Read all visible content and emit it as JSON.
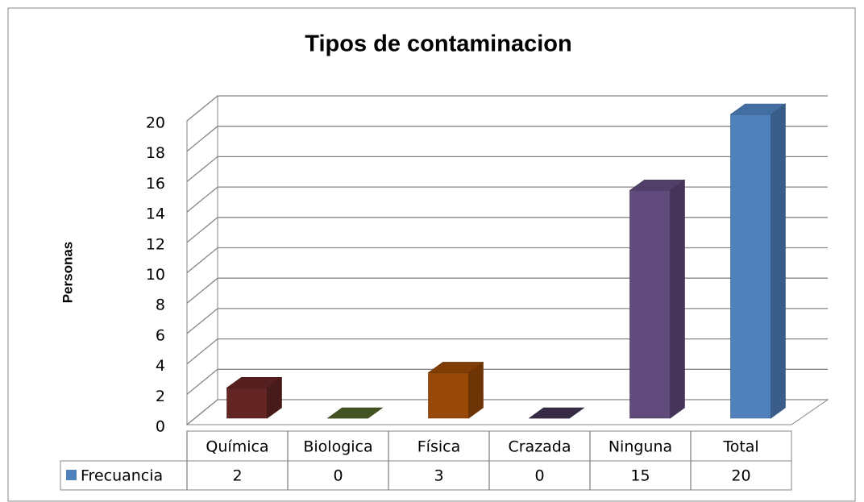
{
  "chart_data": {
    "type": "bar3d",
    "title": "Tipos de contaminacion",
    "ylabel": "Personas",
    "categories": [
      "Química",
      "Biologica",
      "Física",
      "Crazada",
      "Ninguna",
      "Total"
    ],
    "series": [
      {
        "name": "Frecuancia",
        "color": "#4f81bd",
        "values": [
          2,
          0,
          3,
          0,
          15,
          20
        ]
      }
    ],
    "colors": [
      "#632523",
      "#4f6228",
      "#984807",
      "#3f3151",
      "#604a7b",
      "#4f81bd"
    ],
    "ylim": [
      0,
      20
    ],
    "yticks": [
      0,
      2,
      4,
      6,
      8,
      10,
      12,
      14,
      16,
      18,
      20
    ],
    "grid": true
  }
}
